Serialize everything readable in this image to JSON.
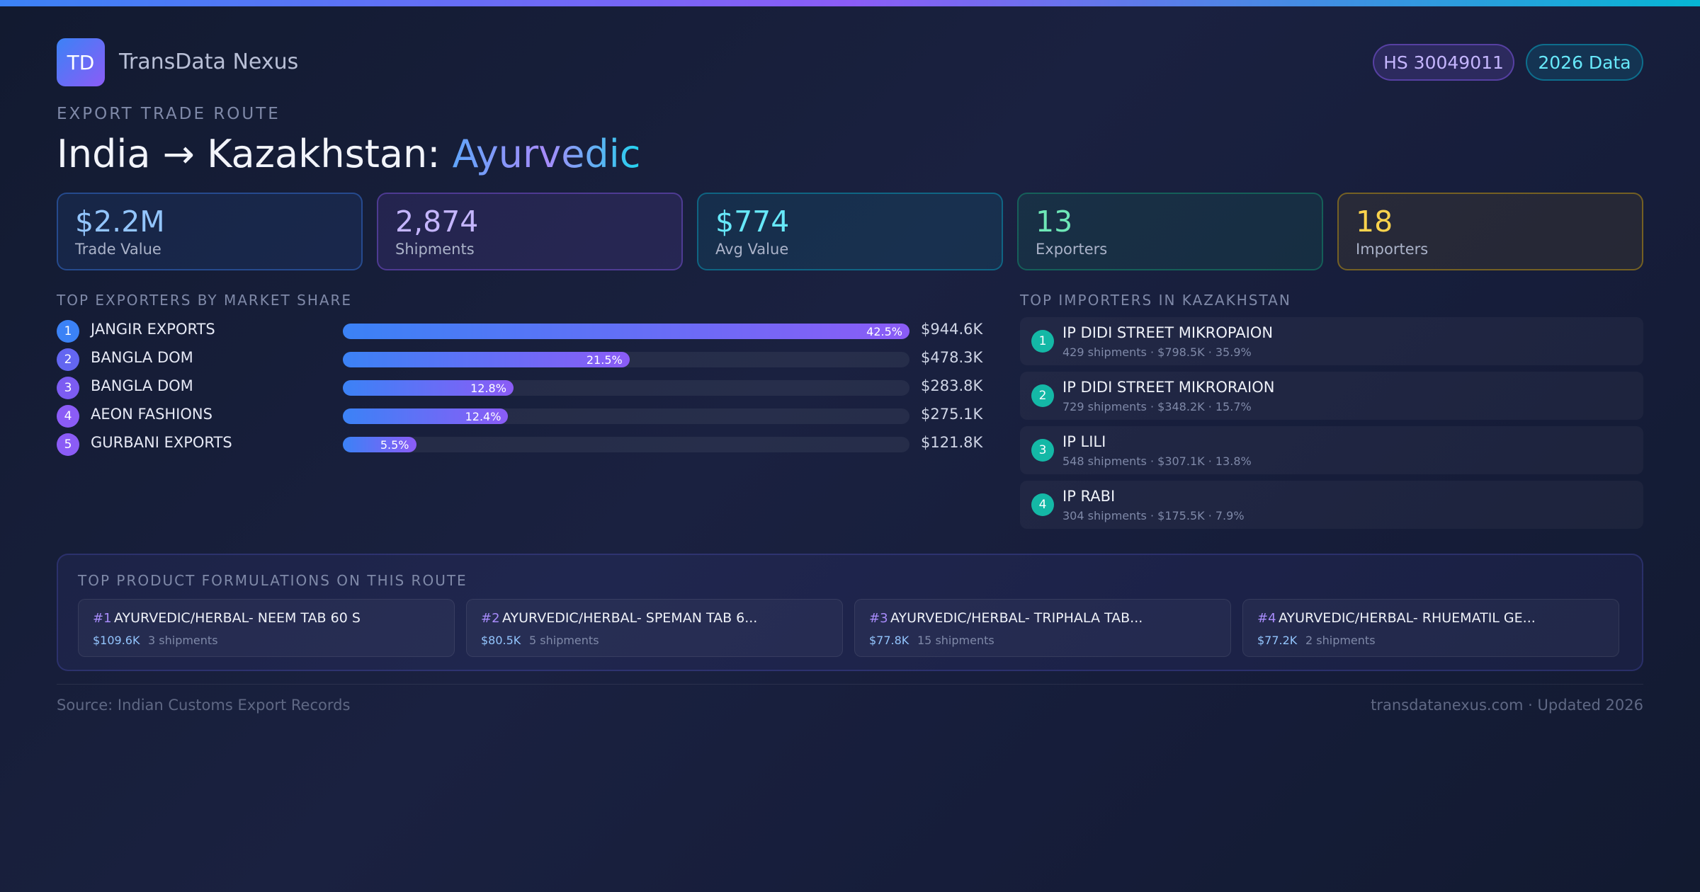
{
  "header": {
    "logo_text": "TD",
    "brand": "TransData Nexus",
    "hs_code": "HS 30049011",
    "data_year": "2026 Data"
  },
  "route": {
    "eyebrow": "EXPORT TRADE ROUTE",
    "title_main": "India → Kazakhstan:",
    "title_accent": "Ayurvedic"
  },
  "kpis": [
    {
      "value": "$2.2M",
      "label": "Trade Value"
    },
    {
      "value": "2,874",
      "label": "Shipments"
    },
    {
      "value": "$774",
      "label": "Avg Value"
    },
    {
      "value": "13",
      "label": "Exporters"
    },
    {
      "value": "18",
      "label": "Importers"
    }
  ],
  "exporters": {
    "heading": "TOP EXPORTERS BY MARKET SHARE",
    "items": [
      {
        "rank": "1",
        "name": "JANGIR EXPORTS",
        "share_pct": 42.5,
        "share_label": "42.5%",
        "value": "$944.6K"
      },
      {
        "rank": "2",
        "name": "BANGLA DOM",
        "share_pct": 21.5,
        "share_label": "21.5%",
        "value": "$478.3K"
      },
      {
        "rank": "3",
        "name": "BANGLA DOM",
        "share_pct": 12.8,
        "share_label": "12.8%",
        "value": "$283.8K"
      },
      {
        "rank": "4",
        "name": "AEON FASHIONS",
        "share_pct": 12.4,
        "share_label": "12.4%",
        "value": "$275.1K"
      },
      {
        "rank": "5",
        "name": "GURBANI EXPORTS",
        "share_pct": 5.5,
        "share_label": "5.5%",
        "value": "$121.8K"
      }
    ],
    "rank_colors": [
      "#3b82f6",
      "#6366f1",
      "#7c5cf2",
      "#8b5cf6",
      "#8b5cf6"
    ]
  },
  "importers": {
    "heading": "TOP IMPORTERS IN KAZAKHSTAN",
    "items": [
      {
        "rank": "1",
        "name": "IP DIDI STREET MIKROPAION",
        "details": "429 shipments · $798.5K · 35.9%"
      },
      {
        "rank": "2",
        "name": "IP DIDI STREET MIKRORAION",
        "details": "729 shipments · $348.2K · 15.7%"
      },
      {
        "rank": "3",
        "name": "IP LILI",
        "details": "548 shipments · $307.1K · 13.8%"
      },
      {
        "rank": "4",
        "name": "IP RABI",
        "details": "304 shipments · $175.5K · 7.9%"
      }
    ]
  },
  "products": {
    "heading": "TOP PRODUCT FORMULATIONS ON THIS ROUTE",
    "items": [
      {
        "num": "#1",
        "name": "AYURVEDIC/HERBAL- NEEM TAB 60 S",
        "value": "$109.6K",
        "shipments": "3 shipments"
      },
      {
        "num": "#2",
        "name": "AYURVEDIC/HERBAL- SPEMAN TAB 6...",
        "value": "$80.5K",
        "shipments": "5 shipments"
      },
      {
        "num": "#3",
        "name": "AYURVEDIC/HERBAL- TRIPHALA TAB...",
        "value": "$77.8K",
        "shipments": "15 shipments"
      },
      {
        "num": "#4",
        "name": "AYURVEDIC/HERBAL- RHUEMATIL GE...",
        "value": "$77.2K",
        "shipments": "2 shipments"
      }
    ]
  },
  "footer": {
    "source": "Source: Indian Customs Export Records",
    "site": "transdatanexus.com · Updated 2026"
  }
}
